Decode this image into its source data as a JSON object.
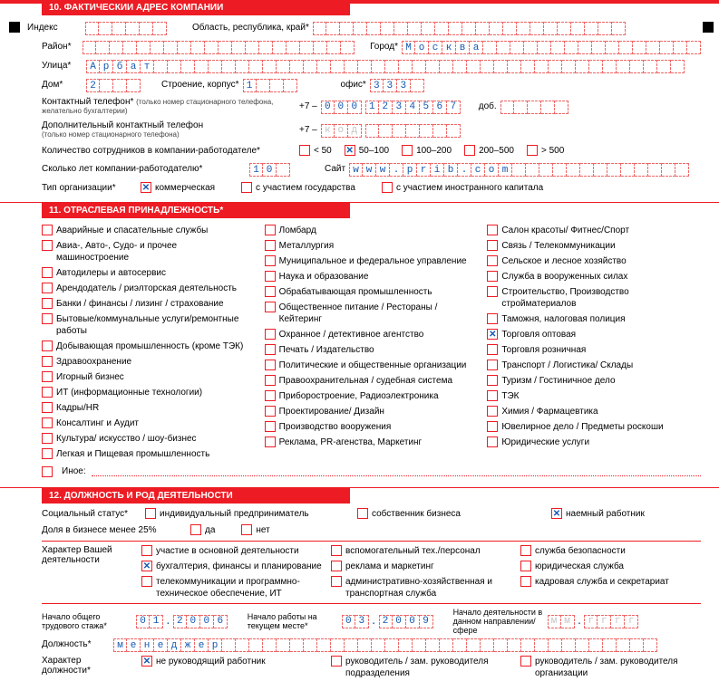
{
  "colors": {
    "accent": "#ed1c24",
    "value": "#1558b0",
    "placeholder": "#c4c4c4",
    "text": "#000000",
    "bg": "#ffffff"
  },
  "section10": {
    "header": "10.  ФАКТИЧЕСКИЙ АДРЕС КОМПАНИИ",
    "index_label": "Индекс",
    "index_len": 6,
    "region_label": "Область, республика, край*",
    "region_len": 23,
    "district_label": "Район*",
    "district_len": 20,
    "city_label": "Город*",
    "city_value": "Москва",
    "city_len": 22,
    "street_label": "Улица*",
    "street_value": "Арбат",
    "street_len": 44,
    "house_label": "Дом*",
    "house_value": "2",
    "house_len": 4,
    "building_label": "Строение, корпус*",
    "building_value": "1",
    "building_len": 4,
    "office_label": "офис*",
    "office_value": "333",
    "office_len": 4,
    "phone_label": "Контактный телефон*",
    "phone_note": "(только номер стационарного телефона, желательно бухгалтерии)",
    "phone_prefix": "+7  ‒",
    "phone_code_len": 3,
    "phone_value": "0001234567",
    "phone_num_len": 7,
    "ext_label": "доб.",
    "ext_len": 5,
    "phone2_label": "Дополнительный контактный телефон",
    "phone2_note": "(только номер стационарного телефона)",
    "phone2_code_placeholder": "код",
    "employees_label": "Количество сотрудников в компании-работодателе*",
    "employees_options": [
      "< 50",
      "50–100",
      "100–200",
      "200–500",
      "> 500"
    ],
    "employees_selected": 1,
    "years_label": "Сколько лет компании-работодателю*",
    "years_value": "10",
    "years_len": 3,
    "site_label": "Сайт",
    "site_value": "www.prib.com",
    "site_len": 25,
    "orgtype_label": "Тип организации*",
    "orgtype_options": [
      "коммерческая",
      "с участием государства",
      "с участием иностранного капитала"
    ],
    "orgtype_selected": 0
  },
  "section11": {
    "header": "11.  ОТРАСЛЕВАЯ ПРИНАДЛЕЖНОСТЬ*",
    "col1": [
      "Аварийные и спасательные службы",
      "Авиа-, Авто-, Судо- и прочее машиностроение",
      "Автодилеры и автосервис",
      "Арендодатель / риэлторская деятельность",
      "Банки / финансы / лизинг / страхование",
      "Бытовые/коммунальные услуги/ремонтные работы",
      "Добывающая промышленность (кроме ТЭК)",
      "Здравоохранение",
      "Игорный бизнес",
      "ИТ (информационные технологии)",
      "Кадры/HR",
      "Консалтинг и Аудит",
      "Культура/ искусство / шоу-бизнес",
      "Легкая и Пищевая промышленность"
    ],
    "col2": [
      "Ломбард",
      "Металлургия",
      "Муниципальное и федеральное управление",
      "Наука и образование",
      "Обрабатывающая промышленность",
      "Общественное питание / Рестораны / Кейтеринг",
      "Охранное / детективное агентство",
      "Печать / Издательство",
      "Политические и общественные организации",
      "Правоохранительная / судебная система",
      "Приборостроение, Радиоэлектроника",
      "Проектирование/ Дизайн",
      "Производство вооружения",
      "Реклама, PR-агенства, Маркетинг"
    ],
    "col3": [
      "Салон красоты/ Фитнес/Спорт",
      "Связь / Телекоммуникации",
      "Сельское и лесное хозяйство",
      "Служба в вооруженных силах",
      "Строительство, Производство стройматериалов",
      "Таможня, налоговая полиция",
      "Торговля оптовая",
      "Торговля розничная",
      "Транспорт / Логистика/ Склады",
      "Туризм / Гостиничное дело",
      "ТЭК",
      "Химия / Фармацевтика",
      "Ювелирное дело / Предметы роскоши",
      "Юридические услуги"
    ],
    "col3_selected": 6,
    "other_label": "Иное:"
  },
  "section12": {
    "header": "12.  ДОЛЖНОСТЬ И РОД ДЕЯТЕЛЬНОСТИ",
    "social_label": "Социальный статус*",
    "social_options": [
      "индивидуальный предприниматель",
      "собственник бизнеса",
      "наемный работник"
    ],
    "social_selected": 2,
    "share_label": "Доля в бизнесе менее 25%",
    "share_options": [
      "да",
      "нет"
    ],
    "activity_label": "Характер Вашей деятельности",
    "activity_rows": [
      [
        "участие в основной деятельности",
        "вспомогательный тех./персонал",
        "служба безопасности"
      ],
      [
        "бухгалтерия, финансы и планирование",
        "реклама и маркетинг",
        "юридическая служба"
      ],
      [
        "телекоммуникации и программно-техническое обеспечение, ИТ",
        "административно-хозяйственная и транспортная служба",
        "кадровая служба и секретариат"
      ]
    ],
    "activity_selected_row": 1,
    "activity_selected_col": 0,
    "exp_start_label": "Начало общего трудового стажа*",
    "exp_start_mm": "01",
    "exp_start_yyyy": "2006",
    "job_start_label": "Начало работы на текущем месте*",
    "job_start_mm": "03",
    "job_start_yyyy": "2009",
    "sphere_start_label": "Начало деятельности в данном направлении/сфере",
    "mm_placeholder": "мм",
    "yyyy_placeholder": "гггг",
    "position_label": "Должность*",
    "position_value": "менеджер",
    "position_len": 40,
    "pos_nature_label": "Характер должности*",
    "pos_nature_options": [
      "не руководящий работник",
      "руководитель / зам. руководителя подразделения",
      "руководитель / зам. руководителя организации"
    ],
    "pos_nature_selected": 0
  }
}
